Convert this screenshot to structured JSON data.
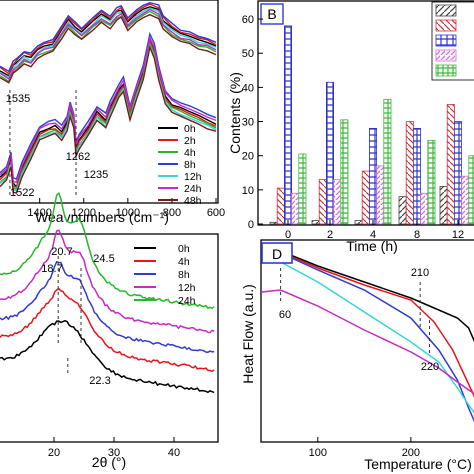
{
  "chart_data": [
    {
      "id": "A",
      "type": "line",
      "panel_label": "",
      "xlabel": "Weavnumbers (cm⁻¹)",
      "xlim": [
        1580,
        600
      ],
      "xticks": [
        "1400",
        "1200",
        "1000",
        "800",
        "600"
      ],
      "xtick_values": [
        1400,
        1200,
        1000,
        800,
        600
      ],
      "annotations": [
        {
          "text": "1535",
          "x": 1535
        },
        {
          "text": "1262",
          "x": 1262
        },
        {
          "text": "1235",
          "x": 1235
        },
        {
          "text": "1522",
          "x": 1522
        }
      ],
      "legend": "right",
      "series": [
        {
          "name": "0h",
          "color": "#000000"
        },
        {
          "name": "2h",
          "color": "#e8141b"
        },
        {
          "name": "4h",
          "color": "#25b82b"
        },
        {
          "name": "8h",
          "color": "#2f3bd6"
        },
        {
          "name": "12h",
          "color": "#35d6d6"
        },
        {
          "name": "24h",
          "color": "#c52bc5"
        },
        {
          "name": "48h",
          "color": "#7a1a1a"
        }
      ]
    },
    {
      "id": "B",
      "type": "bar",
      "panel_label": "B",
      "xlabel": "Time (h)",
      "ylabel": "Contents (%)",
      "ylim": [
        0,
        65
      ],
      "yticks": [
        "0",
        "10",
        "20",
        "30",
        "40",
        "50",
        "60"
      ],
      "ytick_values": [
        0,
        10,
        20,
        30,
        40,
        50,
        60
      ],
      "categories": [
        "0",
        "2",
        "4",
        "8",
        "12"
      ],
      "series": [
        {
          "color": "#444444",
          "values": [
            0.5,
            1,
            1,
            8,
            11
          ]
        },
        {
          "color": "#d9303a",
          "values": [
            10.5,
            13,
            15.5,
            30,
            35
          ]
        },
        {
          "color": "#2f35d0",
          "values": [
            58,
            41.5,
            28,
            28,
            30
          ]
        },
        {
          "color": "#d56adb",
          "values": [
            9,
            13,
            17,
            9,
            14
          ]
        },
        {
          "color": "#3cb83c",
          "values": [
            20.5,
            30.5,
            36.5,
            24.5,
            20
          ]
        }
      ]
    },
    {
      "id": "C",
      "type": "line",
      "panel_label": "",
      "xlabel": "2θ (°)",
      "xlim": [
        11,
        47
      ],
      "xticks": [
        "20",
        "30",
        "40"
      ],
      "xtick_values": [
        20,
        30,
        40
      ],
      "annotations": [
        {
          "text": "20.7",
          "x": 20.7
        },
        {
          "text": "18.7",
          "x": 18.7
        },
        {
          "text": "24.5",
          "x": 24.5
        },
        {
          "text": "22.3",
          "x": 22.3
        }
      ],
      "legend": "top-right",
      "series": [
        {
          "name": "0h",
          "color": "#000000"
        },
        {
          "name": "4h",
          "color": "#e8141b"
        },
        {
          "name": "8h",
          "color": "#2f3bd6"
        },
        {
          "name": "12h",
          "color": "#c52bc5"
        },
        {
          "name": "24h",
          "color": "#25b82b"
        }
      ]
    },
    {
      "id": "D",
      "type": "line",
      "panel_label": "D",
      "xlabel": "Temperature (°C)",
      "ylabel": "Heat Flow (a.u.)",
      "xticks": [
        "100",
        "200"
      ],
      "xtick_values": [
        100,
        200
      ],
      "annotations": [
        {
          "text": "60",
          "x": 60
        },
        {
          "text": "210",
          "x": 210
        },
        {
          "text": "220",
          "x": 220
        }
      ],
      "series": [
        {
          "color": "#000000"
        },
        {
          "color": "#e8141b"
        },
        {
          "color": "#2f3bd6"
        },
        {
          "color": "#35d6d6"
        },
        {
          "color": "#c52bc5"
        }
      ]
    }
  ]
}
